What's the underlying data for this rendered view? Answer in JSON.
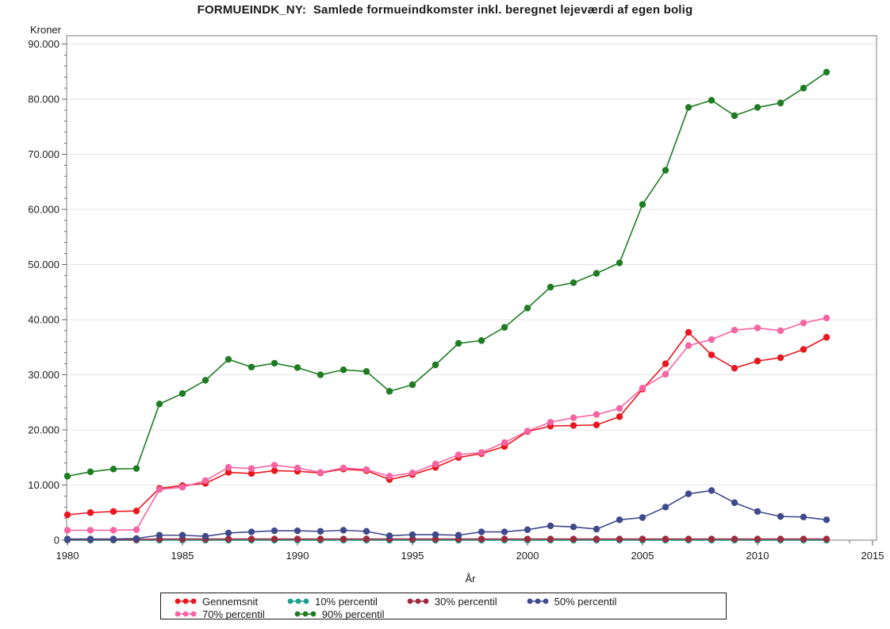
{
  "title": "FORMUEINDK_NY:  Samlede formueindkomster inkl. beregnet lejeværdi af egen bolig",
  "chart_data": {
    "type": "line",
    "title": "FORMUEINDK_NY:  Samlede formueindkomster inkl. beregnet lejeværdi af egen bolig",
    "xlabel": "År",
    "ylabel": "Kroner",
    "xlim": [
      1980,
      2015
    ],
    "ylim": [
      0,
      90000
    ],
    "grid": "horizontal-major",
    "legend_position": "bottom",
    "x_major_ticks": [
      1980,
      1985,
      1990,
      1995,
      2000,
      2005,
      2010,
      2015
    ],
    "x_tick_labels": [
      "1980",
      "1985",
      "1990",
      "1995",
      "2000",
      "2005",
      "2010",
      "2015"
    ],
    "x_minor_step": 1,
    "y_major_ticks": [
      0,
      10000,
      20000,
      30000,
      40000,
      50000,
      60000,
      70000,
      80000,
      90000
    ],
    "y_tick_labels": [
      "0",
      "10.000",
      "20.000",
      "30.000",
      "40.000",
      "50.000",
      "60.000",
      "70.000",
      "80.000",
      "90.000"
    ],
    "y_minor_step": 2000,
    "x": [
      1980,
      1981,
      1982,
      1983,
      1984,
      1985,
      1986,
      1987,
      1988,
      1989,
      1990,
      1991,
      1992,
      1993,
      1994,
      1995,
      1996,
      1997,
      1998,
      1999,
      2000,
      2001,
      2002,
      2003,
      2004,
      2005,
      2006,
      2007,
      2008,
      2009,
      2010,
      2011,
      2012,
      2013
    ],
    "series": [
      {
        "name": "Gennemsnit",
        "color": "#e8171f",
        "values": [
          4600,
          5000,
          5200,
          5300,
          9400,
          9900,
          10300,
          12300,
          12100,
          12600,
          12500,
          12200,
          12900,
          12600,
          11000,
          11900,
          13200,
          15000,
          15700,
          17000,
          19700,
          20700,
          20800,
          20900,
          22400,
          27400,
          32000,
          37700,
          33600,
          31200,
          32500,
          33100,
          34600,
          36800
        ]
      },
      {
        "name": "10% percentil",
        "color": "#1f9e8e",
        "values": [
          0,
          0,
          0,
          0,
          0,
          0,
          0,
          0,
          0,
          0,
          0,
          0,
          0,
          0,
          0,
          0,
          0,
          0,
          0,
          0,
          0,
          0,
          0,
          0,
          0,
          0,
          0,
          0,
          0,
          0,
          0,
          0,
          0,
          0
        ]
      },
      {
        "name": "30% percentil",
        "color": "#9d2b3f",
        "values": [
          100,
          100,
          100,
          100,
          200,
          200,
          200,
          200,
          200,
          200,
          200,
          200,
          200,
          200,
          200,
          200,
          200,
          200,
          200,
          200,
          200,
          200,
          200,
          200,
          200,
          200,
          200,
          200,
          200,
          200,
          200,
          200,
          200,
          200
        ]
      },
      {
        "name": "50% percentil",
        "color": "#3f4a8a",
        "values": [
          200,
          200,
          200,
          300,
          900,
          900,
          700,
          1300,
          1500,
          1700,
          1700,
          1600,
          1800,
          1600,
          800,
          1000,
          1000,
          900,
          1500,
          1500,
          1900,
          2600,
          2400,
          2000,
          3700,
          4100,
          6000,
          8400,
          9000,
          6800,
          5200,
          4300,
          4200,
          3700
        ]
      },
      {
        "name": "70% percentil",
        "color": "#f763a3",
        "values": [
          1800,
          1800,
          1800,
          1900,
          9200,
          9600,
          10800,
          13200,
          13000,
          13600,
          13100,
          12300,
          13100,
          12800,
          11600,
          12200,
          13800,
          15500,
          15900,
          17700,
          19800,
          21400,
          22200,
          22800,
          23900,
          27600,
          30100,
          35300,
          36400,
          38100,
          38500,
          38000,
          39400,
          40300
        ]
      },
      {
        "name": "90% percentil",
        "color": "#1e7d22",
        "values": [
          11600,
          12400,
          12900,
          13000,
          24700,
          26600,
          29000,
          32800,
          31400,
          32100,
          31300,
          30000,
          30900,
          30600,
          27000,
          28200,
          31800,
          35700,
          36200,
          38600,
          42100,
          45900,
          46700,
          48400,
          50300,
          60900,
          67100,
          78500,
          79800,
          77000,
          78500,
          79300,
          82000,
          84900
        ]
      }
    ]
  }
}
